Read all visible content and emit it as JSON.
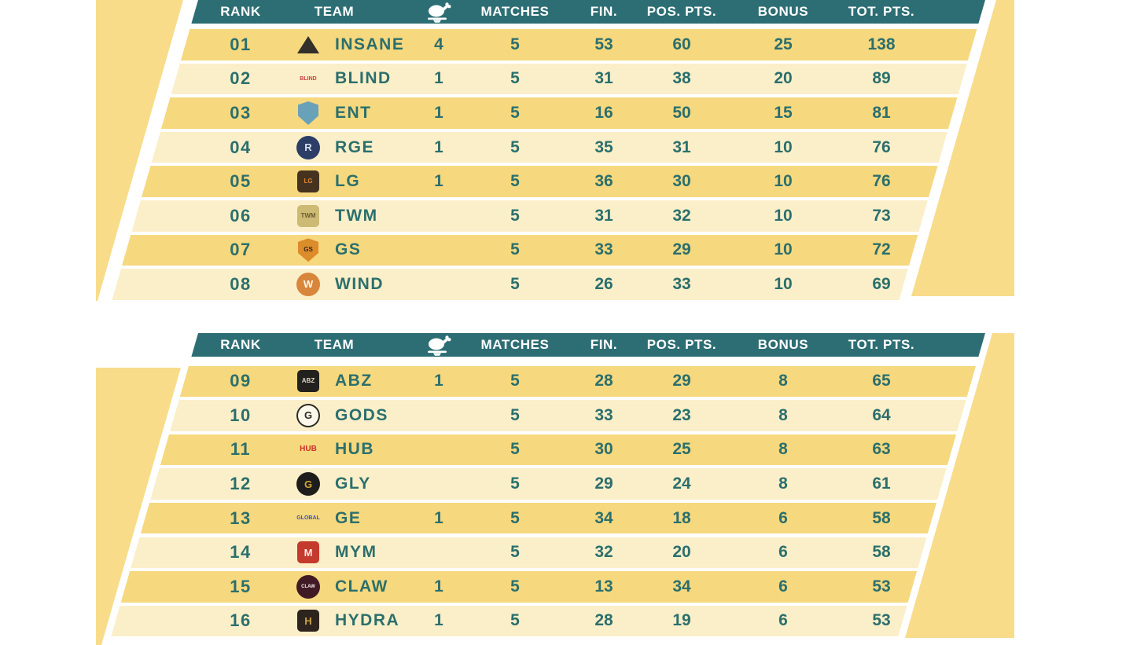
{
  "columns": {
    "rank": "RANK",
    "team": "TEAM",
    "wwcd_icon": "chicken-dinner-icon",
    "matches": "MATCHES",
    "fin": "FIN.",
    "pos_pts": "POS. PTS.",
    "bonus": "BONUS",
    "tot_pts": "TOT. PTS."
  },
  "colors": {
    "header_teal": "#2d6e74",
    "text_teal": "#2b6f6d",
    "row_gold": "#f6d87e",
    "row_cream": "#fbefc9",
    "accent_band_yellow": "#f8dc8a",
    "header_text": "#ffffff"
  },
  "tables": [
    {
      "rows": [
        {
          "rank": "01",
          "team": "INSANE",
          "wwcd": "4",
          "matches": "5",
          "fin": "53",
          "pos": "60",
          "bonus": "25",
          "total": "138",
          "logo": {
            "shape": "triangle",
            "color": "#33302a",
            "label": "",
            "text_color": "#c99a2e"
          }
        },
        {
          "rank": "02",
          "team": "BLIND",
          "wwcd": "1",
          "matches": "5",
          "fin": "31",
          "pos": "38",
          "bonus": "20",
          "total": "89",
          "logo": {
            "shape": "text",
            "color": "",
            "label": "BLIND",
            "text_color": "#c8403c"
          }
        },
        {
          "rank": "03",
          "team": "ENT",
          "wwcd": "1",
          "matches": "5",
          "fin": "16",
          "pos": "50",
          "bonus": "15",
          "total": "81",
          "logo": {
            "shape": "shield",
            "color": "#69a2b8",
            "label": "",
            "text_color": "#ffffff"
          }
        },
        {
          "rank": "04",
          "team": "RGE",
          "wwcd": "1",
          "matches": "5",
          "fin": "35",
          "pos": "31",
          "bonus": "10",
          "total": "76",
          "logo": {
            "shape": "circle",
            "color": "#2c3e68",
            "label": "R",
            "text_color": "#d7e0f2"
          }
        },
        {
          "rank": "05",
          "team": "LG",
          "wwcd": "1",
          "matches": "5",
          "fin": "36",
          "pos": "30",
          "bonus": "10",
          "total": "76",
          "logo": {
            "shape": "mark",
            "color": "#46331f",
            "label": "LG",
            "text_color": "#e08430"
          }
        },
        {
          "rank": "06",
          "team": "TWM",
          "wwcd": "",
          "matches": "5",
          "fin": "31",
          "pos": "32",
          "bonus": "10",
          "total": "73",
          "logo": {
            "shape": "mark",
            "color": "#cdba74",
            "label": "TWM",
            "text_color": "#6b5c33"
          }
        },
        {
          "rank": "07",
          "team": "GS",
          "wwcd": "",
          "matches": "5",
          "fin": "33",
          "pos": "29",
          "bonus": "10",
          "total": "72",
          "logo": {
            "shape": "shield",
            "color": "#dd8c2b",
            "label": "GS",
            "text_color": "#33271a"
          }
        },
        {
          "rank": "08",
          "team": "WIND",
          "wwcd": "",
          "matches": "5",
          "fin": "26",
          "pos": "33",
          "bonus": "10",
          "total": "69",
          "logo": {
            "shape": "circle",
            "color": "#d8863c",
            "label": "W",
            "text_color": "#fff7ea"
          }
        }
      ]
    },
    {
      "rows": [
        {
          "rank": "09",
          "team": "ABZ",
          "wwcd": "1",
          "matches": "5",
          "fin": "28",
          "pos": "29",
          "bonus": "8",
          "total": "65",
          "logo": {
            "shape": "mark",
            "color": "#23211d",
            "label": "ABZ",
            "text_color": "#d9d4c6"
          }
        },
        {
          "rank": "10",
          "team": "GODS",
          "wwcd": "",
          "matches": "5",
          "fin": "33",
          "pos": "23",
          "bonus": "8",
          "total": "64",
          "logo": {
            "shape": "circle",
            "color": "#fdf8ec",
            "label": "G",
            "text_color": "#2b2b23",
            "border": "#2b2b23"
          }
        },
        {
          "rank": "11",
          "team": "HUB",
          "wwcd": "",
          "matches": "5",
          "fin": "30",
          "pos": "25",
          "bonus": "8",
          "total": "63",
          "logo": {
            "shape": "text",
            "color": "",
            "label": "HUB",
            "text_color": "#cd2f2a"
          }
        },
        {
          "rank": "12",
          "team": "GLY",
          "wwcd": "",
          "matches": "5",
          "fin": "29",
          "pos": "24",
          "bonus": "8",
          "total": "61",
          "logo": {
            "shape": "circle",
            "color": "#1d1d1b",
            "label": "G",
            "text_color": "#d2a637"
          }
        },
        {
          "rank": "13",
          "team": "GE",
          "wwcd": "1",
          "matches": "5",
          "fin": "34",
          "pos": "18",
          "bonus": "6",
          "total": "58",
          "logo": {
            "shape": "text",
            "color": "",
            "label": "GLOBAL",
            "text_color": "#3c52c0"
          }
        },
        {
          "rank": "14",
          "team": "MYM",
          "wwcd": "",
          "matches": "5",
          "fin": "32",
          "pos": "20",
          "bonus": "6",
          "total": "58",
          "logo": {
            "shape": "mark",
            "color": "#c43a2c",
            "label": "M",
            "text_color": "#ffe9e2"
          }
        },
        {
          "rank": "15",
          "team": "CLAW",
          "wwcd": "1",
          "matches": "5",
          "fin": "13",
          "pos": "34",
          "bonus": "6",
          "total": "53",
          "logo": {
            "shape": "circle",
            "color": "#401a24",
            "label": "CLAW",
            "text_color": "#f2e6e9"
          }
        },
        {
          "rank": "16",
          "team": "HYDRA",
          "wwcd": "1",
          "matches": "5",
          "fin": "28",
          "pos": "19",
          "bonus": "6",
          "total": "53",
          "logo": {
            "shape": "mark",
            "color": "#2e241e",
            "label": "H",
            "text_color": "#caa24a"
          }
        }
      ]
    }
  ],
  "chart_data": {
    "type": "table",
    "title": "Esports points standings (ranks 01-16)",
    "columns": [
      "RANK",
      "TEAM",
      "WWCD",
      "MATCHES",
      "FIN.",
      "POS. PTS.",
      "BONUS",
      "TOT. PTS."
    ],
    "rows": [
      [
        "01",
        "INSANE",
        4,
        5,
        53,
        60,
        25,
        138
      ],
      [
        "02",
        "BLIND",
        1,
        5,
        31,
        38,
        20,
        89
      ],
      [
        "03",
        "ENT",
        1,
        5,
        16,
        50,
        15,
        81
      ],
      [
        "04",
        "RGE",
        1,
        5,
        35,
        31,
        10,
        76
      ],
      [
        "05",
        "LG",
        1,
        5,
        36,
        30,
        10,
        76
      ],
      [
        "06",
        "TWM",
        0,
        5,
        31,
        32,
        10,
        73
      ],
      [
        "07",
        "GS",
        0,
        5,
        33,
        29,
        10,
        72
      ],
      [
        "08",
        "WIND",
        0,
        5,
        26,
        33,
        10,
        69
      ],
      [
        "09",
        "ABZ",
        1,
        5,
        28,
        29,
        8,
        65
      ],
      [
        "10",
        "GODS",
        0,
        5,
        33,
        23,
        8,
        64
      ],
      [
        "11",
        "HUB",
        0,
        5,
        30,
        25,
        8,
        63
      ],
      [
        "12",
        "GLY",
        0,
        5,
        29,
        24,
        8,
        61
      ],
      [
        "13",
        "GE",
        1,
        5,
        34,
        18,
        6,
        58
      ],
      [
        "14",
        "MYM",
        0,
        5,
        32,
        20,
        6,
        58
      ],
      [
        "15",
        "CLAW",
        1,
        5,
        13,
        34,
        6,
        53
      ],
      [
        "16",
        "HYDRA",
        1,
        5,
        28,
        19,
        6,
        53
      ]
    ]
  }
}
